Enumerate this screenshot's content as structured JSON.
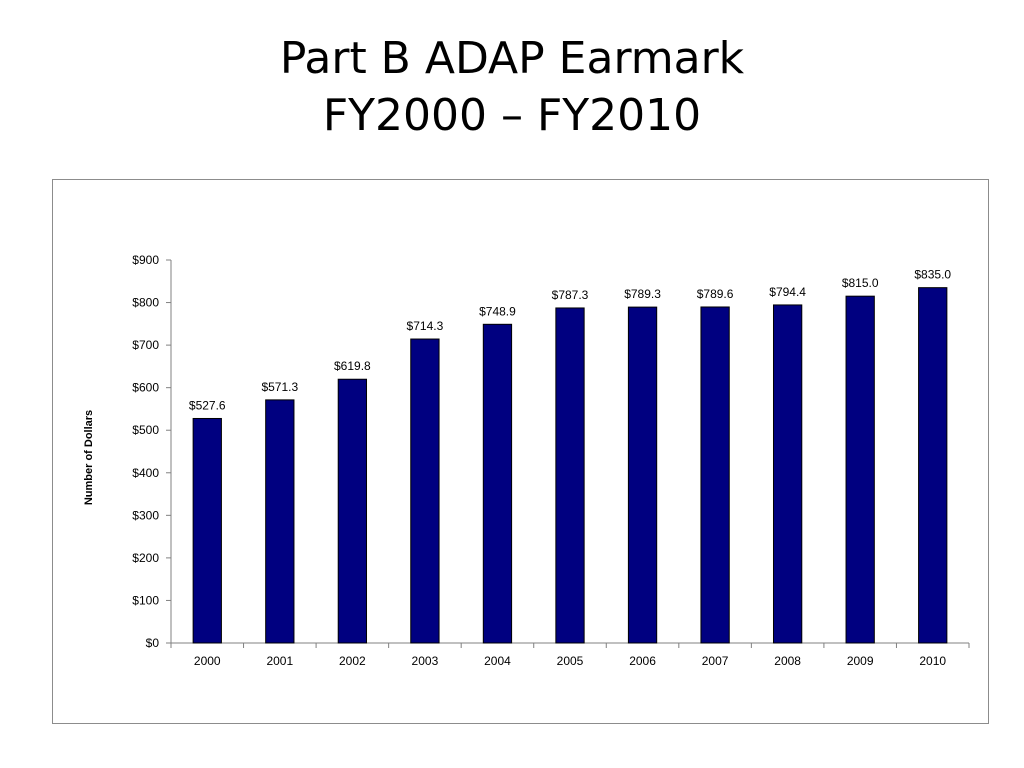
{
  "slide": {
    "title_line1": "Part B ADAP Earmark",
    "title_line2": "FY2000 – FY2010"
  },
  "chart_data": {
    "type": "bar",
    "title": "",
    "xlabel": "",
    "ylabel": "Number of Dollars",
    "categories": [
      "2000",
      "2001",
      "2002",
      "2003",
      "2004",
      "2005",
      "2006",
      "2007",
      "2008",
      "2009",
      "2010"
    ],
    "values": [
      527.6,
      571.3,
      619.8,
      714.3,
      748.9,
      787.3,
      789.3,
      789.6,
      794.4,
      815.0,
      835.0
    ],
    "data_labels": [
      "$527.6",
      "$571.3",
      "$619.8",
      "$714.3",
      "$748.9",
      "$787.3",
      "$789.3",
      "$789.6",
      "$794.4",
      "$815.0",
      "$835.0"
    ],
    "ylim": [
      0,
      900
    ],
    "yticks": [
      0,
      100,
      200,
      300,
      400,
      500,
      600,
      700,
      800,
      900
    ],
    "ytick_labels": [
      "$0",
      "$100",
      "$200",
      "$300",
      "$400",
      "$500",
      "$600",
      "$700",
      "$800",
      "$900"
    ],
    "grid": false,
    "legend": "none",
    "colors": {
      "bar_fill": "#000080",
      "bar_stroke": "#000000",
      "axis": "#808080"
    }
  }
}
